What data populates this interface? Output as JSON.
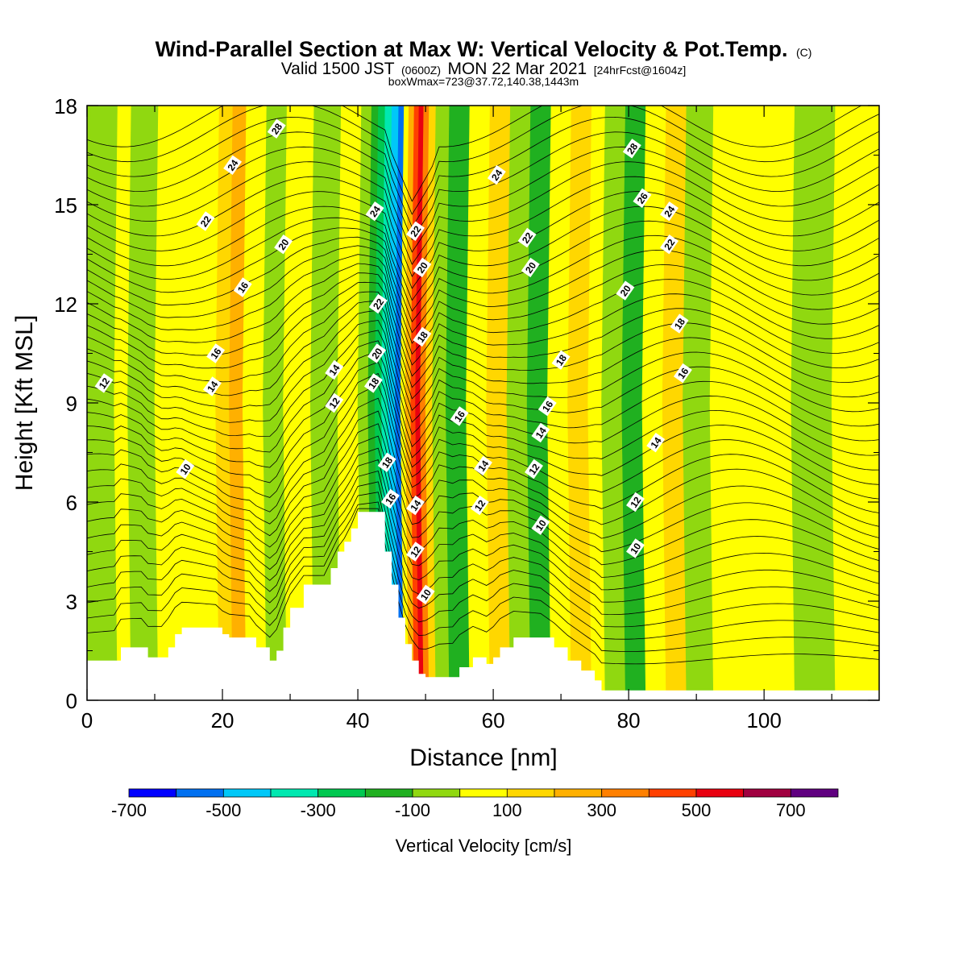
{
  "header": {
    "title": "Wind-Parallel Section at Max W: Vertical Velocity & Pot.Temp.",
    "title_mark": "(C)",
    "valid_prefix": "Valid 1500 JST",
    "valid_zulu": "(0600Z)",
    "valid_date": "MON 22 Mar 2021",
    "forecast": "[24hrFcst@1604z]",
    "box_info": "boxWmax=723@37.72,140.38,1443m"
  },
  "chart_data": {
    "type": "heatmap",
    "title": "Wind-Parallel Section at Max W: Vertical Velocity & Pot.Temp.",
    "xlabel": "Distance [nm]",
    "ylabel": "Height [Kft MSL]",
    "xlim": [
      0,
      117
    ],
    "ylim": [
      0,
      18
    ],
    "x_ticks": [
      0,
      20,
      40,
      60,
      80,
      100
    ],
    "x_tick_labels": [
      "0",
      "20",
      "40",
      "60",
      "80",
      "100"
    ],
    "y_ticks": [
      0,
      3,
      6,
      9,
      12,
      15,
      18
    ],
    "y_tick_labels": [
      "0",
      "3",
      "6",
      "9",
      "12",
      "15",
      "18"
    ],
    "colorbar": {
      "label": "Vertical Velocity [cm/s]",
      "bounds": [
        -700,
        -600,
        -500,
        -400,
        -300,
        -200,
        -100,
        0,
        100,
        200,
        300,
        400,
        500,
        600,
        700,
        800
      ],
      "colors": [
        "#0000ff",
        "#0070f0",
        "#00c8f8",
        "#00e8b0",
        "#00c850",
        "#20b020",
        "#90d810",
        "#ffff00",
        "#ffd700",
        "#ffb000",
        "#ff8000",
        "#ff4000",
        "#e80010",
        "#a00040",
        "#600080"
      ],
      "tick_values": [
        -700,
        -500,
        -300,
        -100,
        100,
        300,
        500,
        700
      ],
      "tick_labels": [
        "-700",
        "-500",
        "-300",
        "-100",
        "100",
        "300",
        "500",
        "700"
      ]
    },
    "velocity_bands": [
      {
        "x0": 0,
        "x1": 4,
        "level": -50
      },
      {
        "x0": 4,
        "x1": 6,
        "level": 50
      },
      {
        "x0": 6,
        "x1": 10,
        "level": -50
      },
      {
        "x0": 10,
        "x1": 16,
        "level": 50
      },
      {
        "x0": 16,
        "x1": 19,
        "level": 50
      },
      {
        "x0": 19,
        "x1": 21,
        "level": 150
      },
      {
        "x0": 21,
        "x1": 23,
        "level": 250
      },
      {
        "x0": 23,
        "x1": 26,
        "level": 50
      },
      {
        "x0": 26,
        "x1": 29,
        "level": -50
      },
      {
        "x0": 29,
        "x1": 33,
        "level": 50
      },
      {
        "x0": 33,
        "x1": 37,
        "level": -50
      },
      {
        "x0": 37,
        "x1": 40,
        "level": 50
      },
      {
        "x0": 40,
        "x1": 41.5,
        "level": -50
      },
      {
        "x0": 41.5,
        "x1": 42.5,
        "level": -150
      },
      {
        "x0": 42.5,
        "x1": 43.5,
        "level": -250
      },
      {
        "x0": 43.5,
        "x1": 44.5,
        "level": -350
      },
      {
        "x0": 44.5,
        "x1": 45.5,
        "level": -450
      },
      {
        "x0": 45.5,
        "x1": 46.3,
        "level": -550
      },
      {
        "x0": 46.3,
        "x1": 47,
        "level": 50
      },
      {
        "x0": 47,
        "x1": 47.8,
        "level": 250
      },
      {
        "x0": 47.8,
        "x1": 48.5,
        "level": 450
      },
      {
        "x0": 48.5,
        "x1": 49.2,
        "level": 550
      },
      {
        "x0": 49.2,
        "x1": 50,
        "level": 350
      },
      {
        "x0": 50,
        "x1": 51,
        "level": 150
      },
      {
        "x0": 51,
        "x1": 53,
        "level": -50
      },
      {
        "x0": 53,
        "x1": 56,
        "level": -150
      },
      {
        "x0": 56,
        "x1": 59,
        "level": 50
      },
      {
        "x0": 59,
        "x1": 62,
        "level": 150
      },
      {
        "x0": 62,
        "x1": 65,
        "level": -50
      },
      {
        "x0": 65,
        "x1": 68,
        "level": -150
      },
      {
        "x0": 68,
        "x1": 71,
        "level": 50
      },
      {
        "x0": 71,
        "x1": 74,
        "level": 150
      },
      {
        "x0": 74,
        "x1": 76,
        "level": 50
      },
      {
        "x0": 76,
        "x1": 79,
        "level": -50
      },
      {
        "x0": 79,
        "x1": 82,
        "level": -150
      },
      {
        "x0": 82,
        "x1": 85,
        "level": 50
      },
      {
        "x0": 85,
        "x1": 88,
        "level": 150
      },
      {
        "x0": 88,
        "x1": 92,
        "level": -50
      },
      {
        "x0": 92,
        "x1": 104,
        "level": 50
      },
      {
        "x0": 104,
        "x1": 110,
        "level": -50
      },
      {
        "x0": 110,
        "x1": 117,
        "level": 50
      }
    ],
    "terrain": [
      [
        0,
        1.2
      ],
      [
        4,
        1.2
      ],
      [
        5,
        1.6
      ],
      [
        8,
        1.6
      ],
      [
        9,
        1.3
      ],
      [
        11,
        1.3
      ],
      [
        12,
        1.6
      ],
      [
        13,
        2.0
      ],
      [
        14,
        2.2
      ],
      [
        19,
        2.2
      ],
      [
        20,
        2.0
      ],
      [
        21,
        1.9
      ],
      [
        24,
        1.9
      ],
      [
        25,
        1.6
      ],
      [
        27,
        1.2
      ],
      [
        28,
        1.5
      ],
      [
        29,
        2.2
      ],
      [
        30,
        2.8
      ],
      [
        32,
        3.5
      ],
      [
        35,
        3.5
      ],
      [
        36,
        4.0
      ],
      [
        37,
        4.5
      ],
      [
        38,
        4.8
      ],
      [
        39,
        5.2
      ],
      [
        40,
        5.7
      ],
      [
        43,
        5.7
      ],
      [
        44,
        4.5
      ],
      [
        45,
        3.5
      ],
      [
        46,
        2.5
      ],
      [
        47,
        1.7
      ],
      [
        48,
        1.2
      ],
      [
        49,
        0.8
      ],
      [
        50,
        0.7
      ],
      [
        54,
        0.7
      ],
      [
        55,
        1.0
      ],
      [
        57,
        1.3
      ],
      [
        59,
        1.1
      ],
      [
        60,
        1.3
      ],
      [
        61,
        1.6
      ],
      [
        63,
        1.9
      ],
      [
        67,
        1.9
      ],
      [
        69,
        1.6
      ],
      [
        71,
        1.2
      ],
      [
        73,
        0.9
      ],
      [
        75,
        0.6
      ],
      [
        76,
        0.3
      ],
      [
        117,
        0.3
      ]
    ],
    "theta_contour_levels": [
      10,
      12,
      14,
      16,
      18,
      20,
      22,
      24,
      26,
      28
    ],
    "contour_labels": [
      {
        "x": 2.5,
        "y": 9.6,
        "text": "12"
      },
      {
        "x": 14.5,
        "y": 7.0,
        "text": "10"
      },
      {
        "x": 18.5,
        "y": 9.5,
        "text": "14"
      },
      {
        "x": 19,
        "y": 10.5,
        "text": "16"
      },
      {
        "x": 23,
        "y": 12.5,
        "text": "16"
      },
      {
        "x": 17.5,
        "y": 14.5,
        "text": "22"
      },
      {
        "x": 21.5,
        "y": 16.2,
        "text": "24"
      },
      {
        "x": 28,
        "y": 17.3,
        "text": "28"
      },
      {
        "x": 29,
        "y": 13.8,
        "text": "20"
      },
      {
        "x": 36.5,
        "y": 10.0,
        "text": "14"
      },
      {
        "x": 36.5,
        "y": 9.0,
        "text": "12"
      },
      {
        "x": 42.5,
        "y": 14.8,
        "text": "24"
      },
      {
        "x": 43,
        "y": 12.0,
        "text": "22"
      },
      {
        "x": 42.8,
        "y": 10.5,
        "text": "20"
      },
      {
        "x": 42.3,
        "y": 9.6,
        "text": "18"
      },
      {
        "x": 44.3,
        "y": 7.2,
        "text": "18"
      },
      {
        "x": 44.8,
        "y": 6.1,
        "text": "16"
      },
      {
        "x": 48.5,
        "y": 14.2,
        "text": "22"
      },
      {
        "x": 49.5,
        "y": 13.1,
        "text": "20"
      },
      {
        "x": 49.5,
        "y": 11.0,
        "text": "18"
      },
      {
        "x": 48.5,
        "y": 5.9,
        "text": "14"
      },
      {
        "x": 48.5,
        "y": 4.5,
        "text": "12"
      },
      {
        "x": 50,
        "y": 3.2,
        "text": "10"
      },
      {
        "x": 55,
        "y": 8.6,
        "text": "16"
      },
      {
        "x": 58.5,
        "y": 7.1,
        "text": "14"
      },
      {
        "x": 58,
        "y": 5.9,
        "text": "12"
      },
      {
        "x": 60.5,
        "y": 15.9,
        "text": "24"
      },
      {
        "x": 65,
        "y": 14.0,
        "text": "22"
      },
      {
        "x": 65.5,
        "y": 13.1,
        "text": "20"
      },
      {
        "x": 70,
        "y": 10.3,
        "text": "18"
      },
      {
        "x": 68,
        "y": 8.9,
        "text": "16"
      },
      {
        "x": 67,
        "y": 8.1,
        "text": "14"
      },
      {
        "x": 66,
        "y": 7.0,
        "text": "12"
      },
      {
        "x": 67,
        "y": 5.3,
        "text": "10"
      },
      {
        "x": 80.5,
        "y": 16.7,
        "text": "28"
      },
      {
        "x": 82,
        "y": 15.2,
        "text": "26"
      },
      {
        "x": 86,
        "y": 14.8,
        "text": "24"
      },
      {
        "x": 86,
        "y": 13.8,
        "text": "22"
      },
      {
        "x": 79.5,
        "y": 12.4,
        "text": "20"
      },
      {
        "x": 87.5,
        "y": 11.4,
        "text": "18"
      },
      {
        "x": 88,
        "y": 9.9,
        "text": "16"
      },
      {
        "x": 84,
        "y": 7.8,
        "text": "14"
      },
      {
        "x": 81,
        "y": 6.0,
        "text": "12"
      },
      {
        "x": 81,
        "y": 4.6,
        "text": "10"
      }
    ]
  }
}
